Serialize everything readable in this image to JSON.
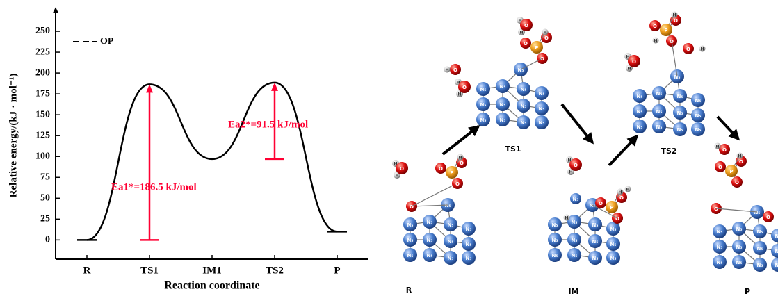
{
  "chart_data": {
    "type": "line",
    "x_label": "Reaction coordinate",
    "y_label": "Relative energy/(kJ · mol⁻¹)",
    "categories": [
      "R",
      "TS1",
      "IM1",
      "TS2",
      "P"
    ],
    "series": [
      {
        "name": "OP",
        "color": "#000000",
        "values": [
          0,
          186.5,
          97,
          188.5,
          10
        ]
      }
    ],
    "ylim": [
      -23,
      270
    ],
    "yticks": [
      0,
      25,
      50,
      75,
      100,
      125,
      150,
      175,
      200,
      225,
      250
    ],
    "legend": "upper left",
    "annotations": [
      {
        "label": "Ea1*=186.5 kJ/mol",
        "value": 186.5,
        "color": "#ff0033"
      },
      {
        "label": "Ea2*=91.5 kJ/mol",
        "value": 91.5,
        "color": "#ff0033"
      }
    ]
  },
  "scheme": {
    "structures": [
      "R",
      "TS1",
      "IM",
      "TS2",
      "P"
    ],
    "elements": {
      "oxygen": "O",
      "phosphorus": "P",
      "hydrogen": "H",
      "nitrogen": "N₅"
    }
  }
}
